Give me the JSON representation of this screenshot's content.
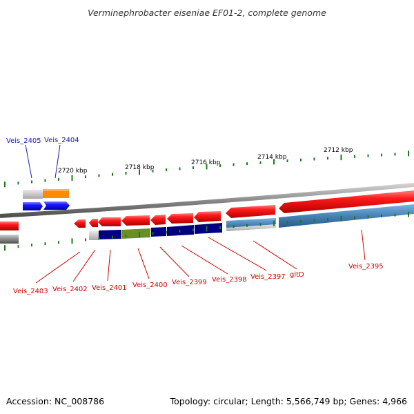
{
  "header": {
    "title": "Verminephrobacter eiseniae EF01-2, complete genome"
  },
  "footer": {
    "accession": "Accession: NC_008786",
    "summary": "Topology: circular; Length: 5,566,749 bp; Genes: 4,966"
  },
  "scale": {
    "ticks": [
      "2720 kbp",
      "2718 kbp",
      "2716 kbp",
      "2714 kbp",
      "2712 kbp"
    ]
  },
  "colors": {
    "forward_gene": "#ff1010",
    "reverse_gene": "#ff1010",
    "selected_gene": "#1010ff",
    "backbone": "#808080",
    "tick": "#1a7a1a",
    "label_forward": "#1a1ab0",
    "label_reverse": "#cc0000",
    "cog_navy": "#000080",
    "cog_olive": "#6b8e23",
    "cog_orange": "#ff8c00",
    "cog_steel": "#4682b4",
    "cog_grey": "#c0c0c0"
  },
  "genes": {
    "upper": [
      {
        "label": "Veis_2405"
      },
      {
        "label": "Veis_2404"
      }
    ],
    "lower": [
      {
        "label": "Veis_2403"
      },
      {
        "label": "Veis_2402"
      },
      {
        "label": "Veis_2401"
      },
      {
        "label": "Veis_2400"
      },
      {
        "label": "Veis_2399"
      },
      {
        "label": "Veis_2398"
      },
      {
        "label": "Veis_2397"
      },
      {
        "label": "gltD"
      },
      {
        "label": "Veis_2395"
      }
    ]
  }
}
